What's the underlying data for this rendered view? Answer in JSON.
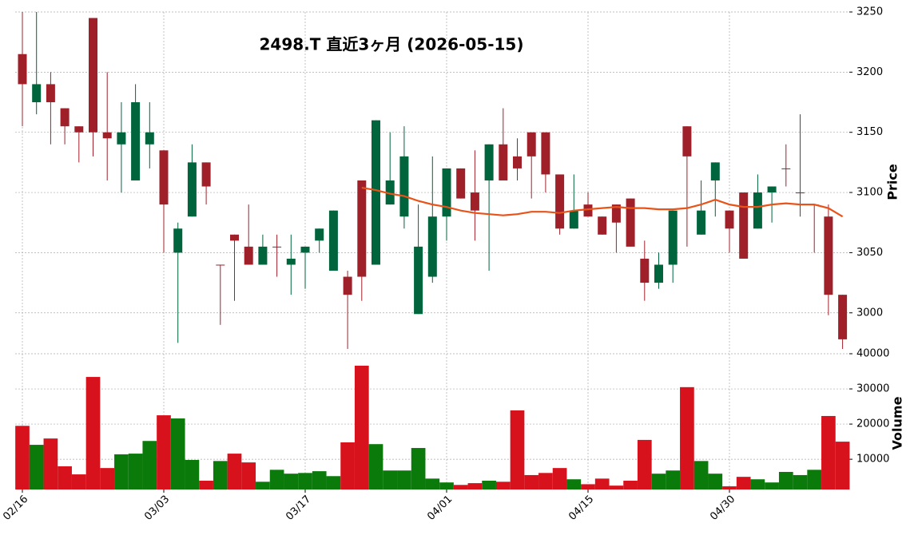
{
  "chart_data": {
    "type": "candlestick",
    "title": "2498.T  直近3ヶ月  (2026-05-15)",
    "categories": [
      "02/16",
      null,
      null,
      null,
      null,
      null,
      null,
      null,
      null,
      null,
      "03/03",
      null,
      null,
      null,
      null,
      null,
      null,
      null,
      null,
      null,
      "03/17",
      null,
      null,
      null,
      null,
      null,
      null,
      null,
      null,
      null,
      "04/01",
      null,
      null,
      null,
      null,
      null,
      null,
      null,
      null,
      null,
      "04/15",
      null,
      null,
      null,
      null,
      null,
      null,
      null,
      null,
      null,
      "04/30",
      null,
      null,
      null,
      null,
      null,
      null,
      null,
      null
    ],
    "open": [
      3215,
      3175,
      3190,
      3170,
      3155,
      3245,
      3150,
      3140,
      3110,
      3140,
      3135,
      3050,
      3080,
      3125,
      3040,
      3065,
      3055,
      3040,
      3055,
      3040,
      3050,
      3060,
      3035,
      3030,
      3110,
      3040,
      3090,
      3080,
      2999,
      3030,
      3080,
      3120,
      3100,
      3110,
      3140,
      3130,
      3150,
      3150,
      3115,
      3070,
      3090,
      3080,
      3090,
      3095,
      3045,
      3025,
      3040,
      3155,
      3065,
      3110,
      3085,
      3100,
      3070,
      3100,
      3120,
      3100,
      3090,
      3080,
      3015
    ],
    "high": [
      3250,
      3250,
      3200,
      3170,
      3155,
      3245,
      3200,
      3175,
      3190,
      3175,
      3135,
      3075,
      3140,
      3125,
      3040,
      3065,
      3090,
      3065,
      3065,
      3065,
      3055,
      3070,
      3085,
      3035,
      3110,
      3160,
      3150,
      3155,
      3090,
      3130,
      3120,
      3120,
      3135,
      3140,
      3170,
      3145,
      3150,
      3150,
      3115,
      3115,
      3100,
      3080,
      3090,
      3095,
      3060,
      3050,
      3085,
      3155,
      3110,
      3125,
      3085,
      3100,
      3115,
      3105,
      3140,
      3165,
      3090,
      3090,
      3015
    ],
    "low": [
      3155,
      3165,
      3140,
      3140,
      3125,
      3130,
      3110,
      3100,
      3110,
      3120,
      3050,
      2975,
      3080,
      3090,
      2990,
      3010,
      3040,
      3040,
      3030,
      3015,
      3020,
      3050,
      3035,
      2970,
      3010,
      3040,
      3090,
      3070,
      2999,
      3025,
      3060,
      3095,
      3060,
      3035,
      3110,
      3110,
      3095,
      3100,
      3065,
      3070,
      3080,
      3065,
      3050,
      3055,
      3010,
      3020,
      3025,
      3055,
      3065,
      3080,
      3050,
      3045,
      3070,
      3075,
      3105,
      3080,
      3050,
      2998,
      2970
    ],
    "close": [
      3190,
      3190,
      3175,
      3155,
      3150,
      3150,
      3145,
      3150,
      3175,
      3150,
      3090,
      3070,
      3125,
      3105,
      3040,
      3060,
      3040,
      3055,
      3055,
      3045,
      3055,
      3070,
      3085,
      3015,
      3030,
      3160,
      3110,
      3130,
      3055,
      3080,
      3120,
      3095,
      3085,
      3140,
      3110,
      3120,
      3130,
      3115,
      3070,
      3085,
      3080,
      3065,
      3075,
      3055,
      3025,
      3040,
      3085,
      3130,
      3085,
      3125,
      3070,
      3045,
      3100,
      3105,
      3120,
      3100,
      3090,
      3015,
      2978
    ],
    "up_color": "#00643c",
    "down_color": "#a0202a",
    "ylabel": "Price",
    "ylim": [
      2966,
      3250
    ],
    "yticks": [
      3000,
      3050,
      3100,
      3150,
      3200,
      3250
    ],
    "grid": true,
    "ma": {
      "color": "#e8531a",
      "values": [
        null,
        null,
        null,
        null,
        null,
        null,
        null,
        null,
        null,
        null,
        null,
        null,
        null,
        null,
        null,
        null,
        null,
        null,
        null,
        null,
        null,
        null,
        null,
        null,
        3104,
        3102,
        3099,
        3097,
        3093,
        3090,
        3088,
        3085,
        3083,
        3082,
        3081,
        3082,
        3084,
        3084,
        3083,
        3085,
        3086,
        3087,
        3088,
        3087,
        3087,
        3086,
        3086,
        3087,
        3090,
        3094,
        3090,
        3088,
        3088,
        3090,
        3091,
        3090,
        3090,
        3087,
        3080
      ]
    },
    "volume": {
      "ylabel": "Volume",
      "ylim": [
        1400,
        40000
      ],
      "yticks": [
        10000,
        20000,
        30000,
        40000
      ],
      "up_color": "#0a7a0a",
      "down_color": "#d8121c",
      "values": [
        19500,
        14100,
        15900,
        8000,
        5700,
        33400,
        7500,
        11400,
        11600,
        15200,
        22500,
        21600,
        9800,
        3900,
        9500,
        11600,
        9100,
        3600,
        7000,
        5900,
        6100,
        6600,
        5200,
        14800,
        36600,
        14300,
        6800,
        6800,
        13200,
        4500,
        3400,
        2700,
        3200,
        3900,
        3600,
        23900,
        5500,
        6100,
        7500,
        4300,
        2900,
        4500,
        2500,
        3900,
        15500,
        5900,
        6800,
        30500,
        9500,
        5900,
        2300,
        5000,
        4300,
        3400,
        6400,
        5500,
        7000,
        22300,
        15000
      ]
    }
  }
}
